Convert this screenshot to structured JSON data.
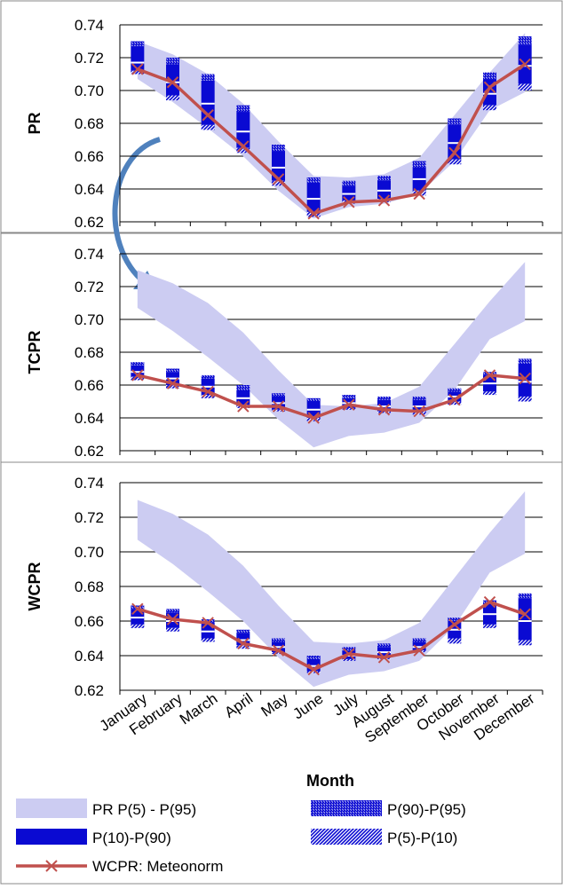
{
  "colors": {
    "band": "#ccccf2",
    "box": "#0a0ad2",
    "line": "#c0504d",
    "grid": "#000000",
    "arrow": "#4f81bd"
  },
  "chart_data": {
    "type": "line",
    "xlabel": "Month",
    "ylim": [
      0.62,
      0.74
    ],
    "yticks": [
      "0.74",
      "0.72",
      "0.70",
      "0.68",
      "0.66",
      "0.64",
      "0.62"
    ],
    "categories": [
      "January",
      "February",
      "March",
      "April",
      "May",
      "June",
      "July",
      "August",
      "September",
      "October",
      "November",
      "December"
    ],
    "band": {
      "name": "PR P(5) - P(95)",
      "lower": [
        0.707,
        0.693,
        0.677,
        0.66,
        0.639,
        0.622,
        0.629,
        0.631,
        0.637,
        0.657,
        0.688,
        0.699
      ],
      "upper": [
        0.73,
        0.722,
        0.71,
        0.692,
        0.669,
        0.648,
        0.647,
        0.649,
        0.659,
        0.685,
        0.711,
        0.735
      ]
    },
    "legend": [
      "PR P(5) - P(95)",
      "P(90)-P(95)",
      "P(10)-P(90)",
      "P(5)-P(10)",
      "WCPR: Meteonorm"
    ],
    "panels": [
      {
        "ylabel": "PR",
        "series": [
          {
            "name": "WCPR: Meteonorm",
            "values": [
              0.713,
              0.705,
              0.685,
              0.666,
              0.646,
              0.625,
              0.632,
              0.633,
              0.637,
              0.662,
              0.702,
              0.716
            ]
          }
        ],
        "boxes": [
          {
            "p5": 0.71,
            "p10": 0.712,
            "p90": 0.727,
            "p95": 0.73,
            "median": 0.717
          },
          {
            "p5": 0.694,
            "p10": 0.697,
            "p90": 0.716,
            "p95": 0.72,
            "median": 0.705
          },
          {
            "p5": 0.676,
            "p10": 0.679,
            "p90": 0.706,
            "p95": 0.71,
            "median": 0.692
          },
          {
            "p5": 0.662,
            "p10": 0.665,
            "p90": 0.687,
            "p95": 0.691,
            "median": 0.675
          },
          {
            "p5": 0.642,
            "p10": 0.645,
            "p90": 0.663,
            "p95": 0.667,
            "median": 0.653
          },
          {
            "p5": 0.623,
            "p10": 0.626,
            "p90": 0.644,
            "p95": 0.647,
            "median": 0.634
          },
          {
            "p5": 0.631,
            "p10": 0.633,
            "p90": 0.642,
            "p95": 0.645,
            "median": 0.637
          },
          {
            "p5": 0.632,
            "p10": 0.634,
            "p90": 0.645,
            "p95": 0.648,
            "median": 0.639
          },
          {
            "p5": 0.636,
            "p10": 0.639,
            "p90": 0.653,
            "p95": 0.657,
            "median": 0.646
          },
          {
            "p5": 0.655,
            "p10": 0.658,
            "p90": 0.679,
            "p95": 0.683,
            "median": 0.668
          },
          {
            "p5": 0.688,
            "p10": 0.691,
            "p90": 0.707,
            "p95": 0.711,
            "median": 0.698
          },
          {
            "p5": 0.7,
            "p10": 0.704,
            "p90": 0.728,
            "p95": 0.733,
            "median": 0.715
          }
        ]
      },
      {
        "ylabel": "TCPR",
        "series": [
          {
            "name": "WCPR: Meteonorm",
            "values": [
              0.666,
              0.661,
              0.656,
              0.647,
              0.647,
              0.64,
              0.648,
              0.645,
              0.644,
              0.651,
              0.666,
              0.664
            ]
          }
        ],
        "boxes": [
          {
            "p5": 0.663,
            "p10": 0.665,
            "p90": 0.672,
            "p95": 0.674,
            "median": 0.668
          },
          {
            "p5": 0.658,
            "p10": 0.66,
            "p90": 0.668,
            "p95": 0.67,
            "median": 0.664
          },
          {
            "p5": 0.652,
            "p10": 0.654,
            "p90": 0.664,
            "p95": 0.666,
            "median": 0.659
          },
          {
            "p5": 0.646,
            "p10": 0.648,
            "p90": 0.657,
            "p95": 0.66,
            "median": 0.652
          },
          {
            "p5": 0.644,
            "p10": 0.645,
            "p90": 0.653,
            "p95": 0.655,
            "median": 0.649
          },
          {
            "p5": 0.638,
            "p10": 0.64,
            "p90": 0.65,
            "p95": 0.652,
            "median": 0.645
          },
          {
            "p5": 0.645,
            "p10": 0.646,
            "p90": 0.652,
            "p95": 0.654,
            "median": 0.649
          },
          {
            "p5": 0.643,
            "p10": 0.644,
            "p90": 0.651,
            "p95": 0.653,
            "median": 0.647
          },
          {
            "p5": 0.642,
            "p10": 0.644,
            "p90": 0.651,
            "p95": 0.653,
            "median": 0.647
          },
          {
            "p5": 0.648,
            "p10": 0.65,
            "p90": 0.656,
            "p95": 0.658,
            "median": 0.653
          },
          {
            "p5": 0.654,
            "p10": 0.656,
            "p90": 0.666,
            "p95": 0.668,
            "median": 0.661
          },
          {
            "p5": 0.65,
            "p10": 0.653,
            "p90": 0.673,
            "p95": 0.676,
            "median": 0.662
          }
        ]
      },
      {
        "ylabel": "WCPR",
        "series": [
          {
            "name": "WCPR: Meteonorm",
            "values": [
              0.667,
              0.661,
              0.659,
              0.647,
              0.643,
              0.632,
              0.641,
              0.639,
              0.643,
              0.658,
              0.671,
              0.664
            ]
          }
        ],
        "boxes": [
          {
            "p5": 0.656,
            "p10": 0.658,
            "p90": 0.667,
            "p95": 0.669,
            "median": 0.662
          },
          {
            "p5": 0.654,
            "p10": 0.656,
            "p90": 0.665,
            "p95": 0.667,
            "median": 0.66
          },
          {
            "p5": 0.648,
            "p10": 0.65,
            "p90": 0.659,
            "p95": 0.661,
            "median": 0.654
          },
          {
            "p5": 0.644,
            "p10": 0.646,
            "p90": 0.653,
            "p95": 0.655,
            "median": 0.649
          },
          {
            "p5": 0.641,
            "p10": 0.642,
            "p90": 0.648,
            "p95": 0.65,
            "median": 0.645
          },
          {
            "p5": 0.63,
            "p10": 0.631,
            "p90": 0.638,
            "p95": 0.64,
            "median": 0.634
          },
          {
            "p5": 0.637,
            "p10": 0.638,
            "p90": 0.643,
            "p95": 0.645,
            "median": 0.64
          },
          {
            "p5": 0.638,
            "p10": 0.64,
            "p90": 0.645,
            "p95": 0.647,
            "median": 0.642
          },
          {
            "p5": 0.642,
            "p10": 0.643,
            "p90": 0.648,
            "p95": 0.65,
            "median": 0.645
          },
          {
            "p5": 0.647,
            "p10": 0.65,
            "p90": 0.66,
            "p95": 0.662,
            "median": 0.655
          },
          {
            "p5": 0.656,
            "p10": 0.658,
            "p90": 0.67,
            "p95": 0.672,
            "median": 0.664
          },
          {
            "p5": 0.646,
            "p10": 0.649,
            "p90": 0.673,
            "p95": 0.676,
            "median": 0.66
          }
        ]
      }
    ]
  }
}
